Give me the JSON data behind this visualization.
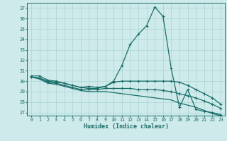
{
  "xlabel": "Humidex (Indice chaleur)",
  "bg_color": "#ceeaea",
  "grid_color": "#aad4d4",
  "line_color": "#1a6e6a",
  "xlim": [
    -0.5,
    23.5
  ],
  "ylim": [
    26.7,
    37.5
  ],
  "yticks": [
    27,
    28,
    29,
    30,
    31,
    32,
    33,
    34,
    35,
    36,
    37
  ],
  "xticks": [
    0,
    1,
    2,
    3,
    4,
    5,
    6,
    7,
    8,
    9,
    10,
    11,
    12,
    13,
    14,
    15,
    16,
    17,
    18,
    19,
    20,
    21,
    22,
    23
  ],
  "series": [
    [
      30.5,
      30.5,
      30.1,
      30.0,
      29.8,
      29.6,
      29.4,
      29.3,
      29.3,
      29.5,
      30.0,
      31.5,
      33.5,
      34.5,
      35.3,
      37.1,
      36.2,
      31.2,
      27.5,
      29.2,
      27.3,
      27.1,
      27.0,
      26.8
    ],
    [
      30.4,
      30.3,
      30.0,
      29.9,
      29.8,
      29.6,
      29.4,
      29.5,
      29.4,
      29.5,
      29.9,
      30.0,
      30.0,
      30.0,
      30.0,
      30.0,
      30.0,
      30.0,
      29.9,
      29.6,
      29.2,
      28.8,
      28.4,
      27.8
    ],
    [
      30.4,
      30.3,
      29.9,
      29.8,
      29.6,
      29.4,
      29.2,
      29.2,
      29.2,
      29.3,
      29.3,
      29.3,
      29.3,
      29.2,
      29.2,
      29.2,
      29.1,
      29.0,
      28.8,
      28.6,
      28.4,
      28.1,
      27.8,
      27.4
    ],
    [
      30.4,
      30.2,
      29.8,
      29.7,
      29.5,
      29.3,
      29.1,
      29.0,
      29.0,
      29.0,
      28.9,
      28.8,
      28.7,
      28.6,
      28.5,
      28.4,
      28.3,
      28.2,
      27.9,
      27.7,
      27.5,
      27.2,
      26.9,
      26.7
    ]
  ]
}
